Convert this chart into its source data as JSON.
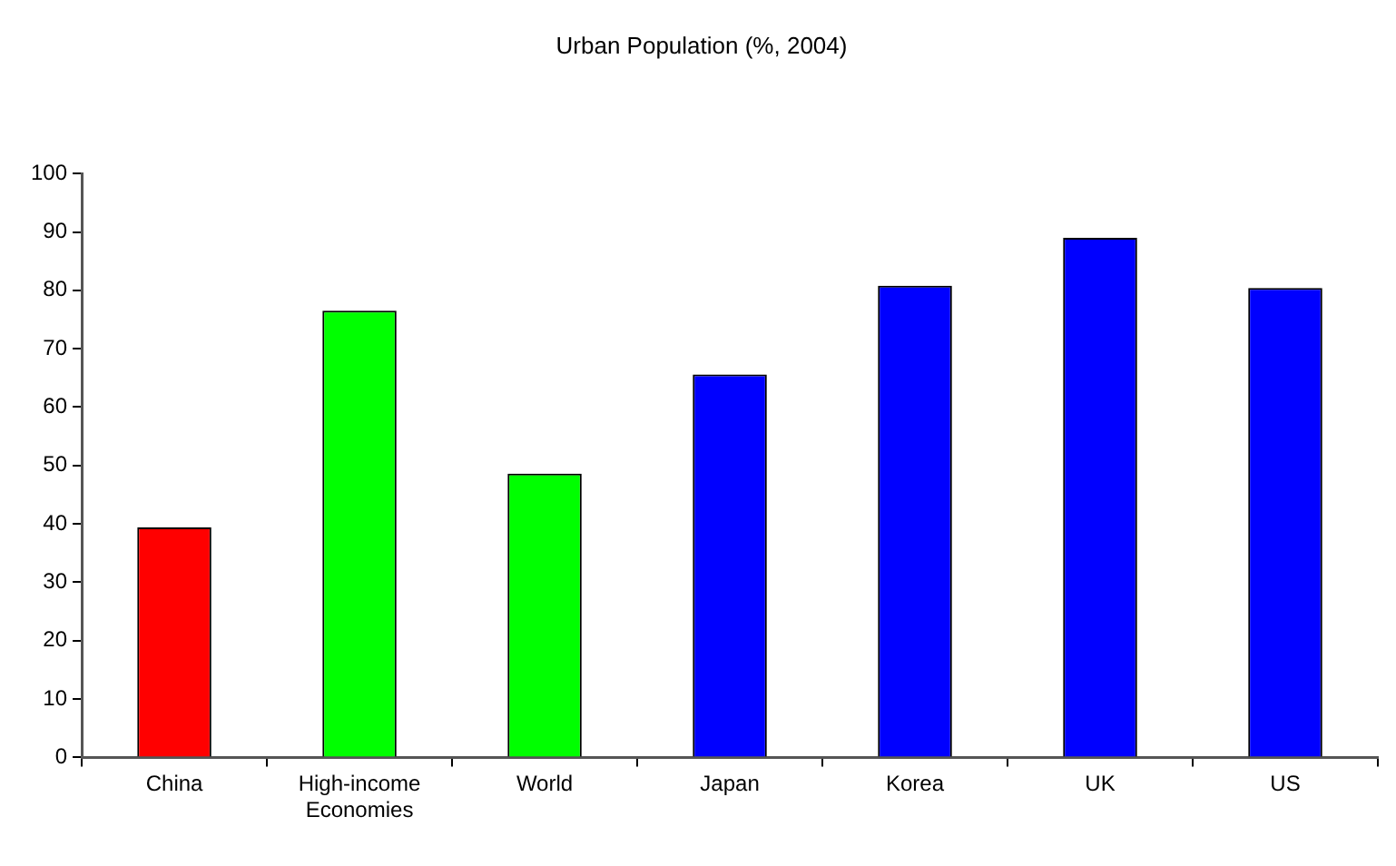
{
  "chart_data": {
    "type": "bar",
    "title": "Urban Population (%, 2004)",
    "categories": [
      "China",
      "High-income Economies",
      "World",
      "Japan",
      "Korea",
      "UK",
      "US"
    ],
    "values": [
      39.4,
      76.5,
      48.6,
      65.6,
      80.8,
      89.0,
      80.4
    ],
    "colors": [
      "#ff0000",
      "#00ff00",
      "#00ff00",
      "#0000ff",
      "#0000ff",
      "#0000ff",
      "#0000ff"
    ],
    "ylim": [
      0,
      100
    ],
    "yticks": [
      0,
      10,
      20,
      30,
      40,
      50,
      60,
      70,
      80,
      90,
      100
    ],
    "grid": false,
    "legend": false
  }
}
